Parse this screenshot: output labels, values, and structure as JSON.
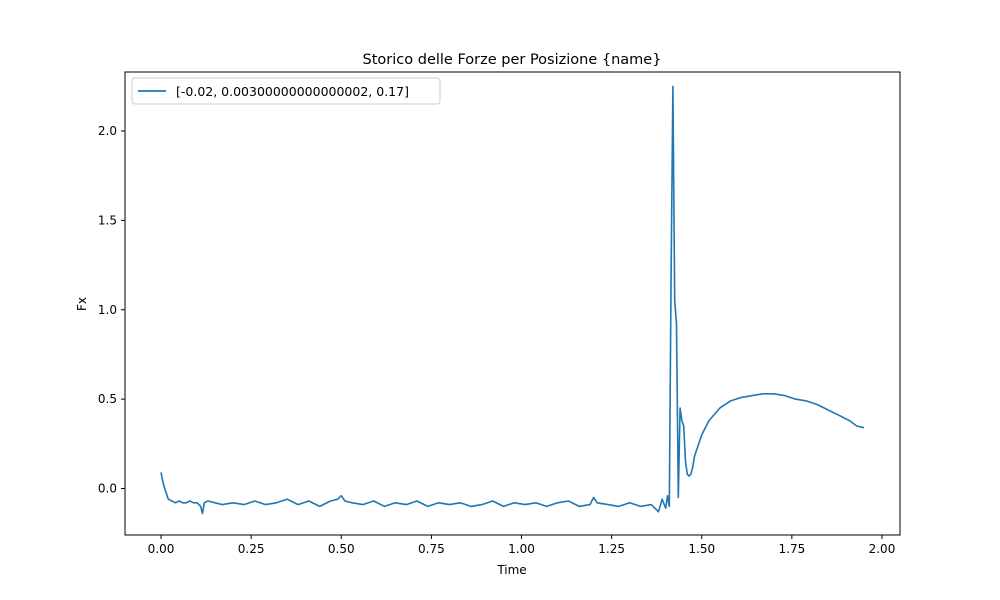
{
  "chart_data": {
    "type": "line",
    "title": "Storico delle Forze per Posizione {name}",
    "xlabel": "Time",
    "ylabel": "Fx",
    "xlim": [
      -0.1,
      2.05
    ],
    "ylim": [
      -0.26,
      2.33
    ],
    "x_ticks": [
      0.0,
      0.25,
      0.5,
      0.75,
      1.0,
      1.25,
      1.5,
      1.75,
      2.0
    ],
    "x_tick_labels": [
      "0.00",
      "0.25",
      "0.50",
      "0.75",
      "1.00",
      "1.25",
      "1.50",
      "1.75",
      "2.00"
    ],
    "y_ticks": [
      0.0,
      0.5,
      1.0,
      1.5,
      2.0
    ],
    "y_tick_labels": [
      "0.0",
      "0.5",
      "1.0",
      "1.5",
      "2.0"
    ],
    "grid": false,
    "legend_position": "top-left",
    "series": [
      {
        "name": "[-0.02, 0.00300000000000002, 0.17]",
        "color": "#1f77b4",
        "x": [
          0.0,
          0.005,
          0.01,
          0.015,
          0.02,
          0.03,
          0.04,
          0.05,
          0.06,
          0.07,
          0.08,
          0.09,
          0.1,
          0.11,
          0.115,
          0.12,
          0.13,
          0.15,
          0.17,
          0.2,
          0.23,
          0.26,
          0.29,
          0.32,
          0.35,
          0.38,
          0.41,
          0.44,
          0.47,
          0.49,
          0.5,
          0.51,
          0.53,
          0.56,
          0.59,
          0.62,
          0.65,
          0.68,
          0.71,
          0.74,
          0.77,
          0.8,
          0.83,
          0.86,
          0.89,
          0.92,
          0.95,
          0.98,
          1.01,
          1.04,
          1.07,
          1.1,
          1.13,
          1.16,
          1.19,
          1.2,
          1.21,
          1.24,
          1.27,
          1.3,
          1.33,
          1.36,
          1.38,
          1.39,
          1.4,
          1.405,
          1.41,
          1.415,
          1.42,
          1.425,
          1.43,
          1.435,
          1.44,
          1.445,
          1.45,
          1.455,
          1.46,
          1.465,
          1.47,
          1.475,
          1.48,
          1.49,
          1.5,
          1.52,
          1.55,
          1.58,
          1.61,
          1.64,
          1.67,
          1.7,
          1.73,
          1.76,
          1.79,
          1.82,
          1.85,
          1.88,
          1.91,
          1.93,
          1.95
        ],
        "y": [
          0.09,
          0.04,
          0.0,
          -0.03,
          -0.06,
          -0.07,
          -0.08,
          -0.07,
          -0.08,
          -0.08,
          -0.07,
          -0.08,
          -0.08,
          -0.1,
          -0.14,
          -0.08,
          -0.07,
          -0.08,
          -0.09,
          -0.08,
          -0.09,
          -0.07,
          -0.09,
          -0.08,
          -0.06,
          -0.09,
          -0.07,
          -0.1,
          -0.07,
          -0.06,
          -0.04,
          -0.07,
          -0.08,
          -0.09,
          -0.07,
          -0.1,
          -0.08,
          -0.09,
          -0.07,
          -0.1,
          -0.08,
          -0.09,
          -0.08,
          -0.1,
          -0.09,
          -0.07,
          -0.1,
          -0.08,
          -0.09,
          -0.08,
          -0.1,
          -0.08,
          -0.07,
          -0.1,
          -0.09,
          -0.05,
          -0.08,
          -0.09,
          -0.1,
          -0.08,
          -0.1,
          -0.09,
          -0.13,
          -0.06,
          -0.11,
          -0.04,
          -0.1,
          1.2,
          2.25,
          1.05,
          0.92,
          -0.05,
          0.45,
          0.38,
          0.35,
          0.15,
          0.08,
          0.07,
          0.08,
          0.12,
          0.18,
          0.24,
          0.3,
          0.38,
          0.45,
          0.49,
          0.51,
          0.52,
          0.53,
          0.53,
          0.52,
          0.5,
          0.49,
          0.47,
          0.44,
          0.41,
          0.38,
          0.35,
          0.34
        ]
      }
    ]
  }
}
